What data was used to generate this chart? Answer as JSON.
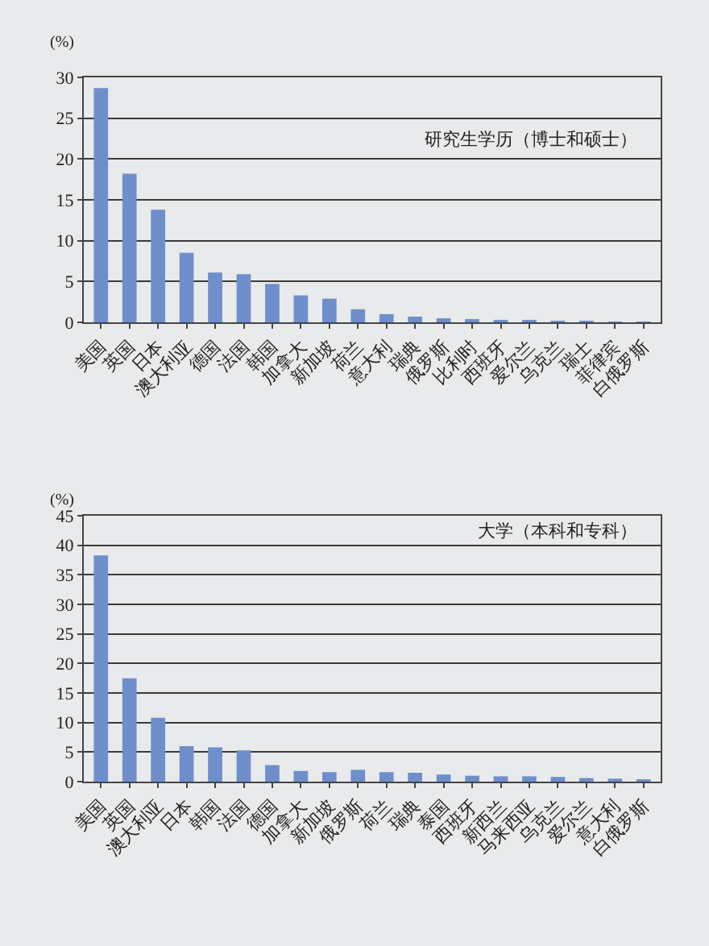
{
  "chart_data": [
    {
      "type": "bar",
      "title": "研究生学历（博士和硕士）",
      "ylabel": "(%)",
      "categories": [
        "美国",
        "英国",
        "日本",
        "澳大利亚",
        "德国",
        "法国",
        "韩国",
        "加拿大",
        "新加坡",
        "荷兰",
        "意大利",
        "瑞典",
        "俄罗斯",
        "比利时",
        "西班牙",
        "爱尔兰",
        "乌克兰",
        "瑞士",
        "菲律宾",
        "白俄罗斯"
      ],
      "values": [
        28.7,
        18.2,
        13.8,
        8.5,
        6.1,
        5.9,
        4.7,
        3.3,
        2.9,
        1.6,
        1.0,
        0.7,
        0.5,
        0.4,
        0.3,
        0.3,
        0.2,
        0.2,
        0.1,
        0.1
      ],
      "color": "#6f8fcc",
      "ylim": [
        0,
        30
      ],
      "yticks": [
        0,
        5,
        10,
        15,
        20,
        25,
        30
      ],
      "grid": "y"
    },
    {
      "type": "bar",
      "title": "大学（本科和专科）",
      "ylabel": "(%)",
      "categories": [
        "美国",
        "英国",
        "澳大利亚",
        "日本",
        "韩国",
        "法国",
        "德国",
        "加拿大",
        "新加坡",
        "俄罗斯",
        "荷兰",
        "瑞典",
        "泰国",
        "西班牙",
        "新西兰",
        "马来西亚",
        "乌克兰",
        "爱尔兰",
        "意大利",
        "白俄罗斯"
      ],
      "values": [
        38.3,
        17.5,
        10.8,
        6.0,
        5.8,
        5.3,
        2.8,
        1.8,
        1.6,
        2.0,
        1.6,
        1.5,
        1.2,
        1.0,
        0.9,
        0.9,
        0.8,
        0.6,
        0.5,
        0.4
      ],
      "color": "#6f8fcc",
      "ylim": [
        0,
        45
      ],
      "yticks": [
        0,
        5,
        10,
        15,
        20,
        25,
        30,
        35,
        40,
        45
      ],
      "grid": "y"
    }
  ]
}
